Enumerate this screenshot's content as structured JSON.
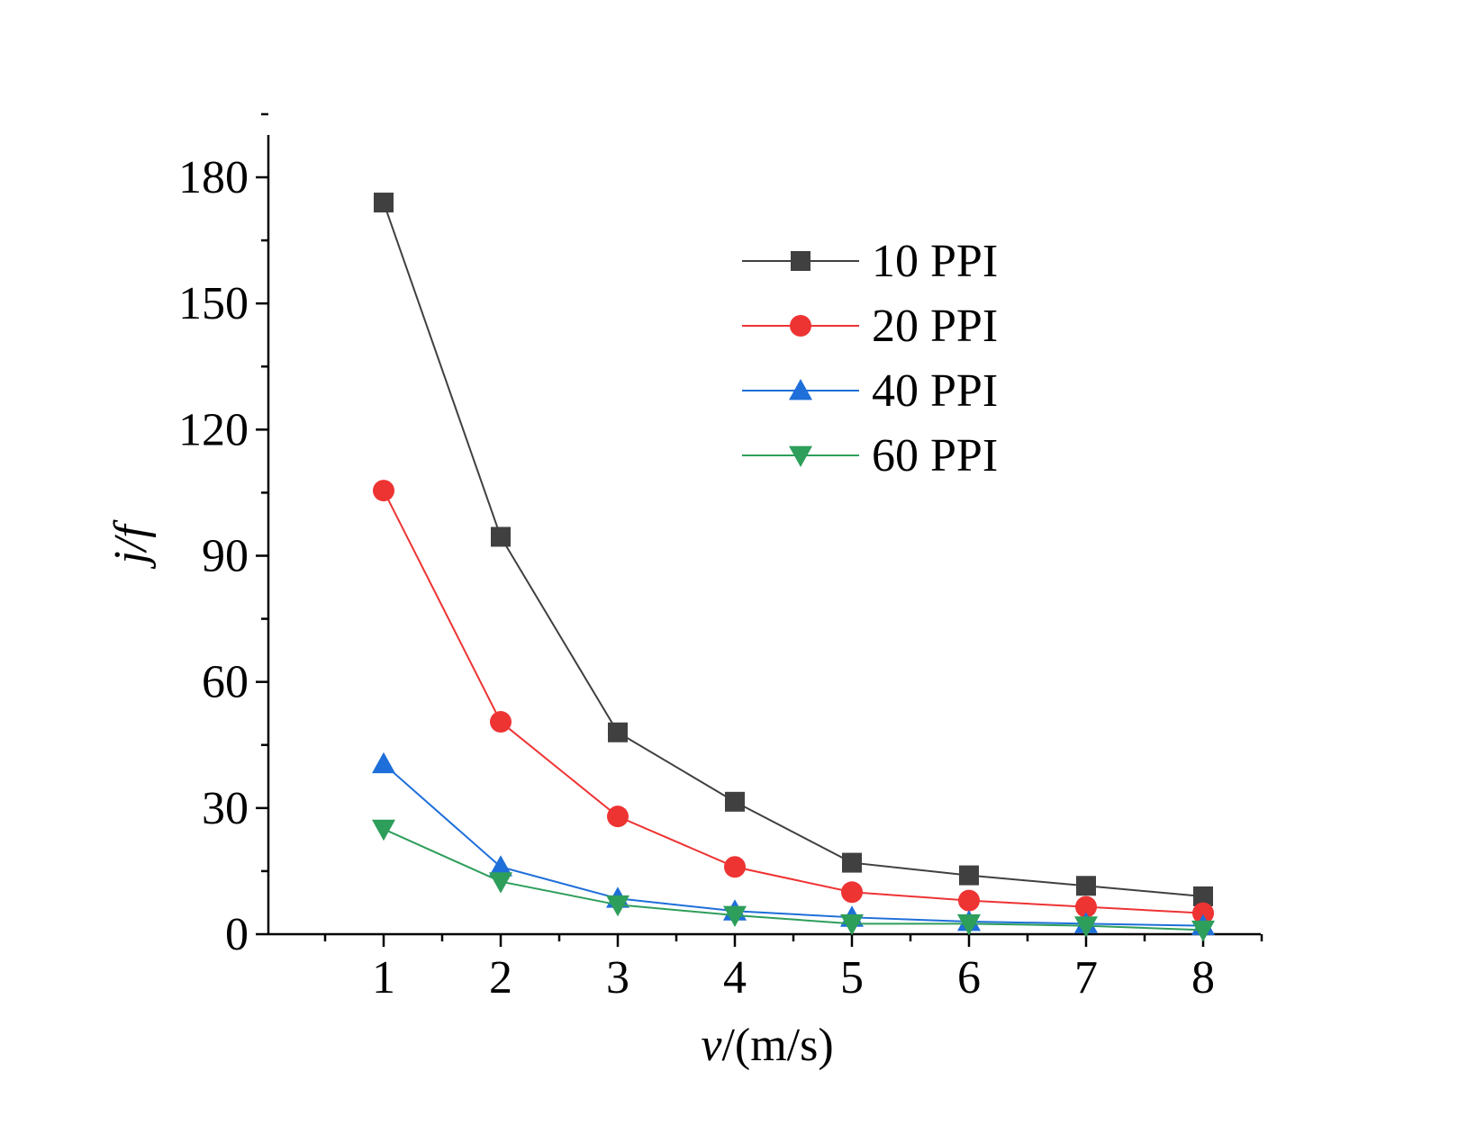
{
  "chart_data": {
    "type": "line",
    "title": "",
    "xlabel": "v/(m/s)",
    "xlabel_var": "v",
    "xlabel_unit": "/(m/s)",
    "ylabel": "j/f",
    "x": [
      1,
      2,
      3,
      4,
      5,
      6,
      7,
      8
    ],
    "xlim": [
      0,
      8.5
    ],
    "ylim": [
      0,
      190
    ],
    "xticks": [
      1,
      2,
      3,
      4,
      5,
      6,
      7,
      8
    ],
    "yticks": [
      0,
      30,
      60,
      90,
      120,
      150,
      180
    ],
    "grid": false,
    "legend_position": "top-right",
    "series": [
      {
        "name": "10 PPI",
        "color": "#404040",
        "marker": "square",
        "values": [
          174,
          94.5,
          48,
          31.5,
          17,
          14,
          11.5,
          9
        ]
      },
      {
        "name": "20 PPI",
        "color": "#ee3333",
        "marker": "circle",
        "values": [
          105.5,
          50.5,
          28,
          16,
          10,
          8,
          6.5,
          5
        ]
      },
      {
        "name": "40 PPI",
        "color": "#1e6fd9",
        "marker": "triangle-up",
        "values": [
          40.5,
          16,
          8.5,
          5.5,
          4,
          3,
          2.5,
          2
        ]
      },
      {
        "name": "60 PPI",
        "color": "#2e9e5b",
        "marker": "triangle-down",
        "values": [
          25,
          12.5,
          7,
          4.5,
          2.5,
          2.5,
          2,
          1
        ]
      }
    ]
  }
}
